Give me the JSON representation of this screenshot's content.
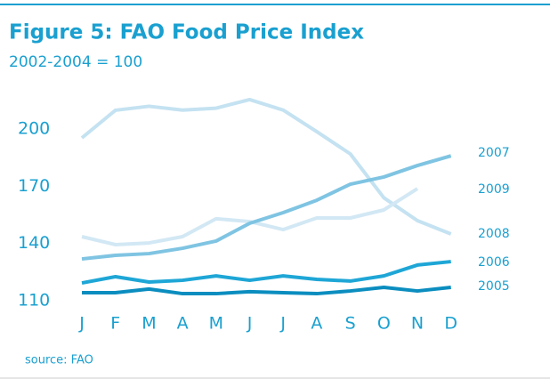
{
  "chart_data": {
    "type": "line",
    "title": "Figure 5: FAO Food Price Index",
    "subtitle": "2002-2004 = 100",
    "source": "source: FAO",
    "categories": [
      "J",
      "F",
      "M",
      "A",
      "M",
      "J",
      "J",
      "A",
      "S",
      "O",
      "N",
      "D"
    ],
    "series": [
      {
        "name": "2008",
        "color": "#c4e2f1",
        "values": [
          195.4,
          209.9,
          212,
          210,
          211,
          215.5,
          210,
          198.7,
          187,
          164,
          152,
          145
        ]
      },
      {
        "name": "2009",
        "color": "#d2e8f4",
        "values": [
          143.6,
          139.4,
          140.3,
          143.6,
          153,
          151.5,
          147.3,
          153.4,
          153.4,
          157.6,
          168.8,
          null
        ]
      },
      {
        "name": "2007",
        "color": "#7fc4e2",
        "values": [
          131.9,
          133.8,
          134.7,
          137.5,
          141.3,
          150.6,
          156.2,
          162.7,
          171.1,
          174.9,
          180.9,
          186
        ]
      },
      {
        "name": "2006",
        "color": "#1ea6d6",
        "values": [
          119.3,
          122.6,
          119.8,
          120.7,
          123,
          120.7,
          123,
          121.2,
          120.3,
          123,
          128.7,
          130.5
        ]
      },
      {
        "name": "2005",
        "color": "#0b8dbf",
        "values": [
          114.2,
          114.2,
          116.1,
          113.7,
          113.7,
          114.7,
          114.2,
          113.7,
          115.1,
          117,
          115.1,
          117
        ]
      }
    ],
    "ylim": [
      105,
      220
    ],
    "yticks": [
      110,
      140,
      170,
      200
    ]
  }
}
